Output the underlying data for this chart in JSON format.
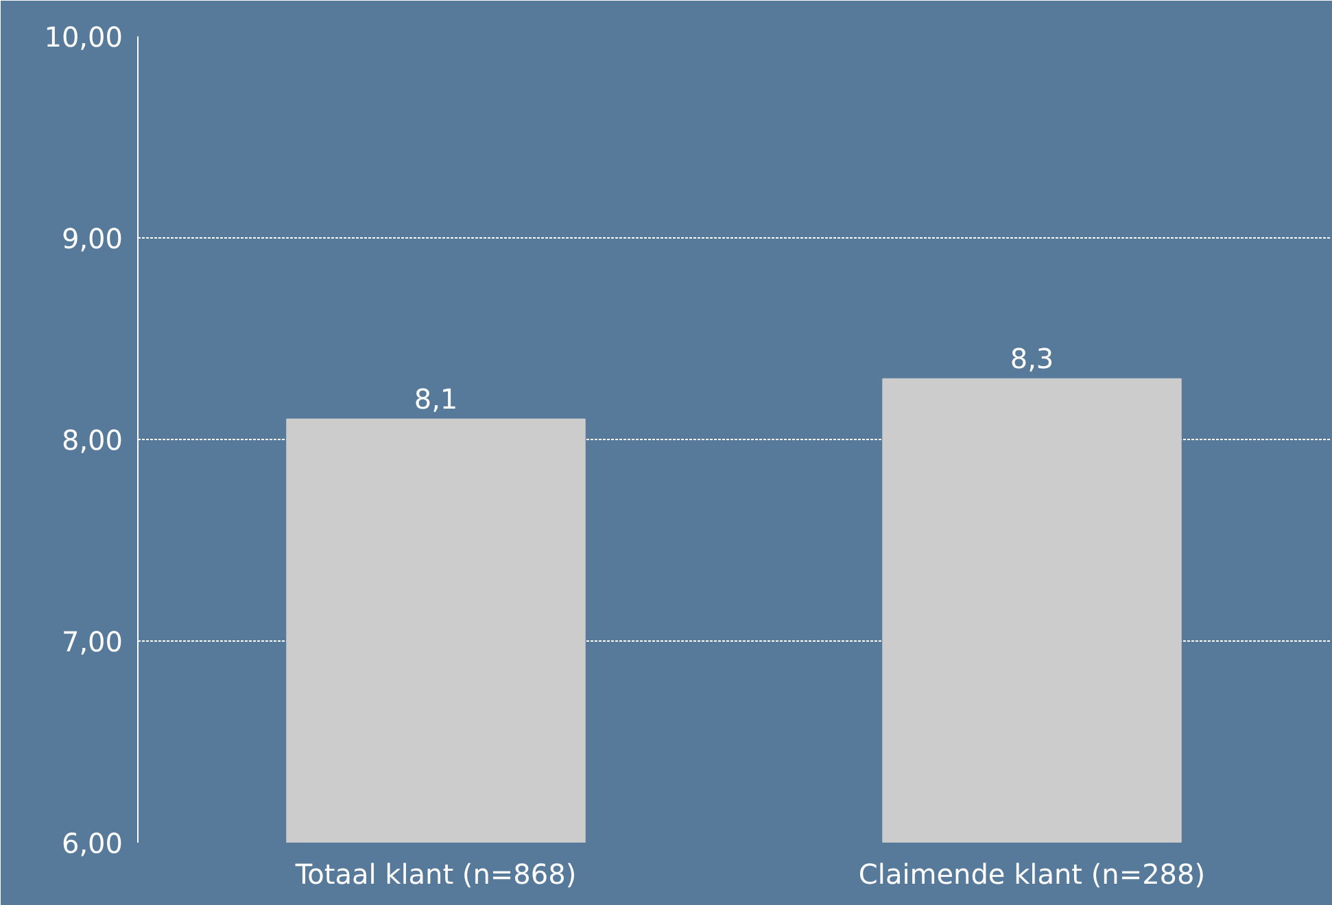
{
  "chart_data": {
    "type": "bar",
    "categories": [
      "Totaal klant (n=868)",
      "Claimende klant (n=288)"
    ],
    "values": [
      8.1,
      8.3
    ],
    "value_labels": [
      "8,1",
      "8,3"
    ],
    "color": "#cccccc",
    "ylim": [
      6,
      10
    ],
    "yticks": [
      {
        "value": 6,
        "label": "6,00"
      },
      {
        "value": 7,
        "label": "7,00"
      },
      {
        "value": 8,
        "label": "8,00"
      },
      {
        "value": 9,
        "label": "9,00"
      },
      {
        "value": 10,
        "label": "10,00"
      }
    ],
    "grid": "y"
  }
}
